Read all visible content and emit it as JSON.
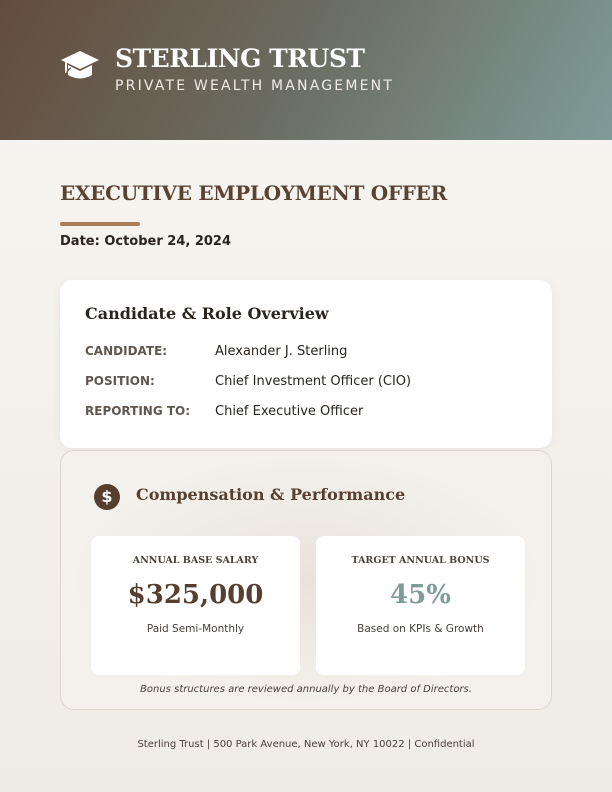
{
  "header": {
    "brand": "STERLING TRUST",
    "tagline": "PRIVATE WEALTH MANAGEMENT",
    "logo_icon": "graduation-cap-icon"
  },
  "document": {
    "title": "EXECUTIVE EMPLOYMENT OFFER",
    "date": "Date: October 24, 2024"
  },
  "overview": {
    "heading": "Candidate & Role Overview",
    "rows": [
      {
        "label": "CANDIDATE:",
        "value": "Alexander J. Sterling"
      },
      {
        "label": "POSITION:",
        "value": "Chief Investment Officer (CIO)"
      },
      {
        "label": "REPORTING TO:",
        "value": "Chief Executive Officer"
      }
    ]
  },
  "compensation": {
    "icon": "dollar-icon",
    "icon_glyph": "$",
    "heading": "Compensation & Performance",
    "salary": {
      "label": "ANNUAL BASE SALARY",
      "value": "$325,000",
      "sub": "Paid Semi-Monthly"
    },
    "bonus": {
      "label": "TARGET ANNUAL BONUS",
      "value": "45%",
      "sub": "Based on KPIs & Growth"
    },
    "note": "Bonus structures are reviewed annually by the Board of Directors."
  },
  "footer": "Sterling Trust | 500 Park Avenue, New York, NY 10022 | Confidential",
  "colors": {
    "brown": "#573f2f",
    "sage": "#7e9c98",
    "accent_bar": "#a97c59"
  }
}
